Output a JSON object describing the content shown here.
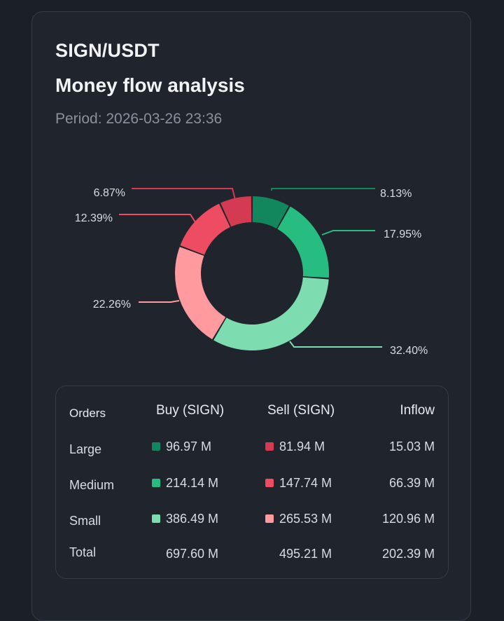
{
  "header": {
    "pair": "SIGN/USDT",
    "title": "Money flow analysis",
    "period": "Period: 2026-03-26 23:36"
  },
  "colors": {
    "large_buy": "#12875d",
    "medium_buy": "#27bd80",
    "small_buy": "#7ddcb0",
    "large_sell": "#d43a52",
    "medium_sell": "#ee4c62",
    "small_sell": "#ff9a9e"
  },
  "chart_data": {
    "type": "pie",
    "variant": "donut",
    "slices": [
      {
        "name": "Large Buy",
        "value": 8.13,
        "label": "8.13%",
        "color": "#12875d"
      },
      {
        "name": "Medium Buy",
        "value": 17.95,
        "label": "17.95%",
        "color": "#27bd80"
      },
      {
        "name": "Small Buy",
        "value": 32.4,
        "label": "32.40%",
        "color": "#7ddcb0"
      },
      {
        "name": "Small Sell",
        "value": 22.26,
        "label": "22.26%",
        "color": "#ff9a9e"
      },
      {
        "name": "Medium Sell",
        "value": 12.39,
        "label": "12.39%",
        "color": "#ee4c62"
      },
      {
        "name": "Large Sell",
        "value": 6.87,
        "label": "6.87%",
        "color": "#d43a52"
      }
    ]
  },
  "table": {
    "headers": {
      "orders": "Orders",
      "buy": "Buy (SIGN)",
      "sell": "Sell (SIGN)",
      "inflow": "Inflow"
    },
    "rows": [
      {
        "label": "Large",
        "buy": "96.97 M",
        "sell": "81.94 M",
        "inflow": "15.03 M"
      },
      {
        "label": "Medium",
        "buy": "214.14 M",
        "sell": "147.74 M",
        "inflow": "66.39 M"
      },
      {
        "label": "Small",
        "buy": "386.49 M",
        "sell": "265.53 M",
        "inflow": "120.96 M"
      }
    ],
    "total": {
      "label": "Total",
      "buy": "697.60 M",
      "sell": "495.21 M",
      "inflow": "202.39 M"
    }
  }
}
